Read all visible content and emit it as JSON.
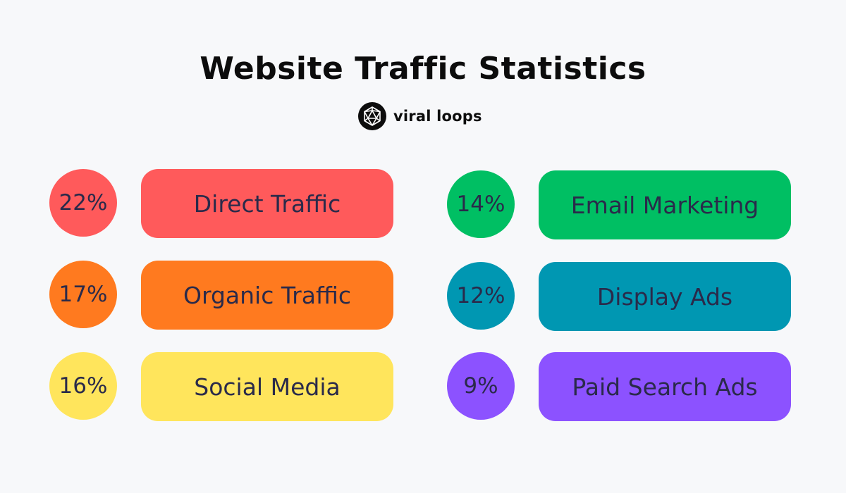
{
  "title": "Website Traffic Statistics",
  "brand": {
    "name": "viral loops",
    "logo_icon": "geodesic-sphere-icon"
  },
  "chart_data": {
    "type": "table",
    "title": "Website Traffic Statistics",
    "unit": "%",
    "categories": [
      "Direct Traffic",
      "Organic Traffic",
      "Social Media",
      "Email Marketing",
      "Display Ads",
      "Paid Search Ads"
    ],
    "values": [
      22,
      17,
      16,
      14,
      12,
      9
    ],
    "labels": [
      "22%",
      "17%",
      "16%",
      "14%",
      "12%",
      "9%"
    ],
    "colors": [
      "#ff5a5b",
      "#ff7a1f",
      "#ffe55c",
      "#00bf63",
      "#0097b2",
      "#8c52ff"
    ]
  }
}
